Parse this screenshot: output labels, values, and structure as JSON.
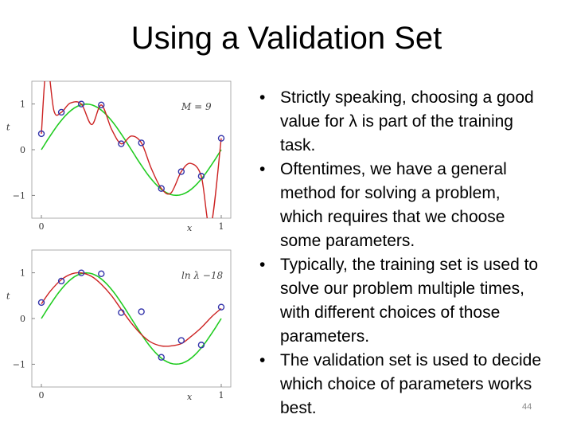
{
  "slide": {
    "title": "Using a Validation Set",
    "page_number": "44",
    "bullets": [
      "Strictly speaking, choosing a good value for λ is part of the training task.",
      "Oftentimes, we have a general method for solving a problem, which requires that we choose some parameters.",
      "Typically, the training set is used to solve our problem multiple times, with different choices of those parameters.",
      "The validation set is used to decide which choice of parameters works best."
    ]
  },
  "colors": {
    "target": "#22cc22",
    "fit": "#cc2222",
    "points": "#3333aa"
  },
  "chart_data": [
    {
      "type": "line",
      "annotation": "M = 9",
      "xlabel": "x",
      "ylabel": "t",
      "xlim": [
        0,
        1
      ],
      "ylim": [
        -1.5,
        1.5
      ],
      "xticks": [
        "0",
        "1"
      ],
      "yticks": [
        "1",
        "0",
        "−1"
      ],
      "points": {
        "x": [
          0.0,
          0.111,
          0.222,
          0.333,
          0.444,
          0.556,
          0.667,
          0.778,
          0.889,
          1.0
        ],
        "y": [
          0.35,
          0.82,
          1.0,
          0.98,
          0.13,
          0.15,
          -0.85,
          -0.48,
          -0.58,
          0.25
        ]
      },
      "series": [
        {
          "kind": "target",
          "function": "sin(2πx)"
        },
        {
          "kind": "fit",
          "x": [
            0.0,
            0.03,
            0.07,
            0.111,
            0.16,
            0.222,
            0.28,
            0.333,
            0.39,
            0.444,
            0.5,
            0.556,
            0.61,
            0.667,
            0.72,
            0.778,
            0.83,
            0.889,
            0.94,
            1.0
          ],
          "y": [
            0.35,
            1.9,
            0.85,
            0.82,
            1.02,
            1.0,
            0.55,
            0.98,
            0.45,
            0.13,
            0.3,
            0.15,
            -0.4,
            -0.85,
            -0.95,
            -0.48,
            -0.3,
            -0.58,
            -1.7,
            0.25
          ]
        }
      ]
    },
    {
      "type": "line",
      "annotation": "ln λ  −18",
      "xlabel": "x",
      "ylabel": "t",
      "xlim": [
        0,
        1
      ],
      "ylim": [
        -1.5,
        1.5
      ],
      "xticks": [
        "0",
        "1"
      ],
      "yticks": [
        "1",
        "0",
        "−1"
      ],
      "points": {
        "x": [
          0.0,
          0.111,
          0.222,
          0.333,
          0.444,
          0.556,
          0.667,
          0.778,
          0.889,
          1.0
        ],
        "y": [
          0.35,
          0.82,
          1.0,
          0.98,
          0.13,
          0.15,
          -0.85,
          -0.48,
          -0.58,
          0.25
        ]
      },
      "series": [
        {
          "kind": "target",
          "function": "sin(2πx)"
        },
        {
          "kind": "fit",
          "x": [
            0.0,
            0.05,
            0.111,
            0.17,
            0.222,
            0.28,
            0.333,
            0.39,
            0.444,
            0.5,
            0.556,
            0.61,
            0.667,
            0.72,
            0.778,
            0.83,
            0.889,
            0.95,
            1.0
          ],
          "y": [
            0.32,
            0.6,
            0.85,
            0.98,
            1.0,
            0.92,
            0.75,
            0.5,
            0.2,
            -0.1,
            -0.35,
            -0.52,
            -0.6,
            -0.6,
            -0.55,
            -0.4,
            -0.2,
            0.05,
            0.22
          ]
        }
      ]
    }
  ]
}
